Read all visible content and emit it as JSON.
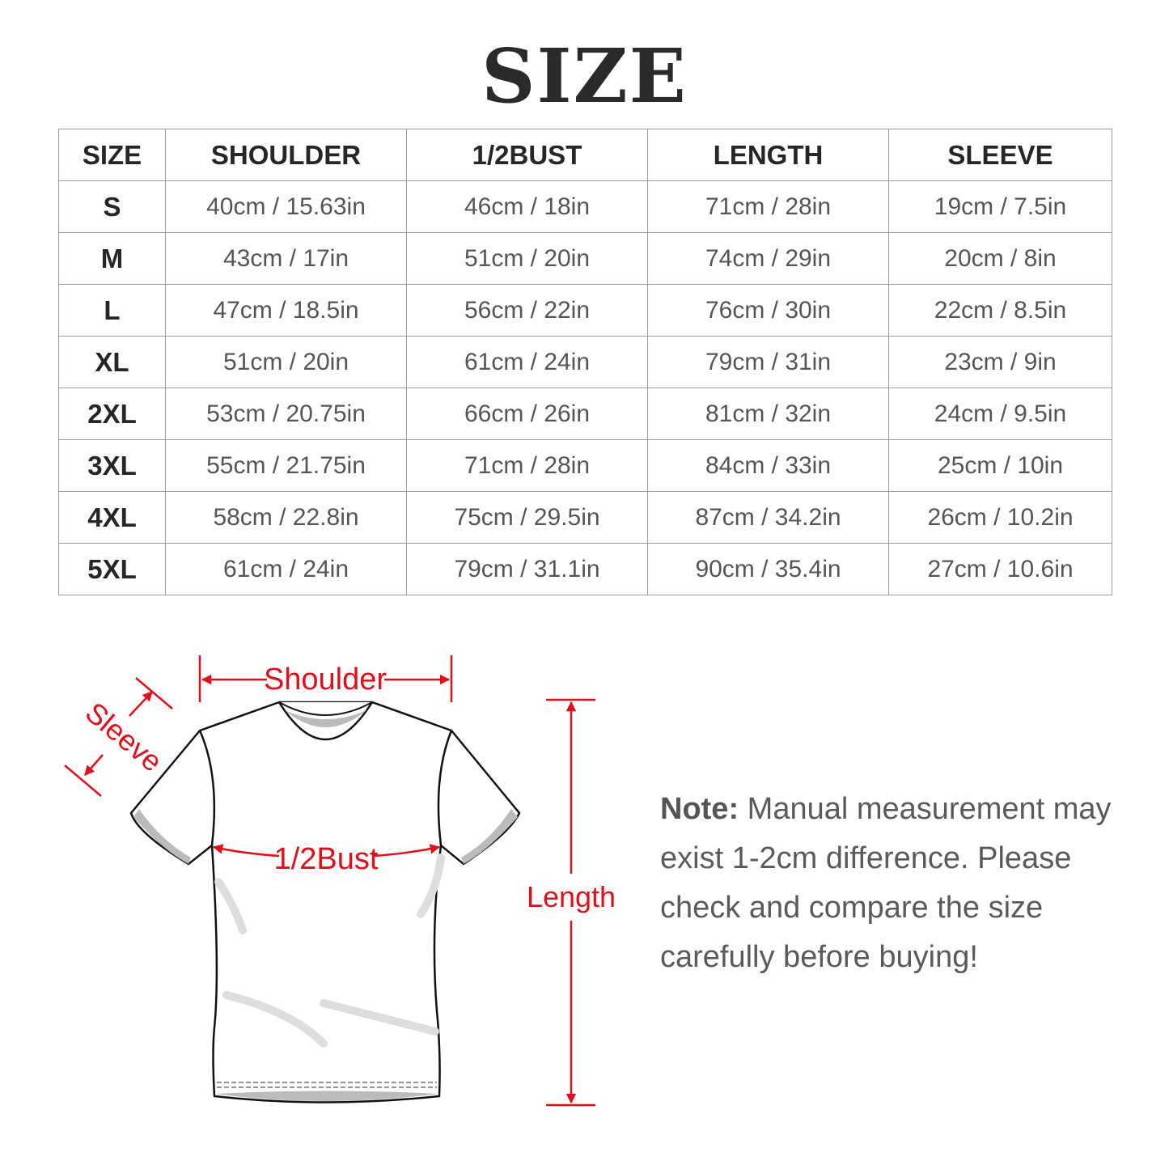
{
  "title": "SIZE",
  "table": {
    "headers": [
      "SIZE",
      "SHOULDER",
      "1/2BUST",
      "LENGTH",
      "SLEEVE"
    ],
    "rows": [
      [
        "S",
        "40cm / 15.63in",
        "46cm / 18in",
        "71cm / 28in",
        "19cm / 7.5in"
      ],
      [
        "M",
        "43cm / 17in",
        "51cm / 20in",
        "74cm / 29in",
        "20cm / 8in"
      ],
      [
        "L",
        "47cm / 18.5in",
        "56cm / 22in",
        "76cm / 30in",
        "22cm / 8.5in"
      ],
      [
        "XL",
        "51cm / 20in",
        "61cm / 24in",
        "79cm / 31in",
        "23cm / 9in"
      ],
      [
        "2XL",
        "53cm / 20.75in",
        "66cm / 26in",
        "81cm / 32in",
        "24cm / 9.5in"
      ],
      [
        "3XL",
        "55cm / 21.75in",
        "71cm / 28in",
        "84cm / 33in",
        "25cm / 10in"
      ],
      [
        "4XL",
        "58cm / 22.8in",
        "75cm / 29.5in",
        "87cm / 34.2in",
        "26cm / 10.2in"
      ],
      [
        "5XL",
        "61cm / 24in",
        "79cm / 31.1in",
        "90cm / 35.4in",
        "27cm / 10.6in"
      ]
    ]
  },
  "diagram": {
    "labels": {
      "shoulder": "Shoulder",
      "sleeve": "Sleeve",
      "bust": "1/2Bust",
      "length": "Length"
    },
    "accent_color": "#e0101a"
  },
  "note": {
    "label": "Note:",
    "text": " Manual measurement may exist 1-2cm difference. Please check and compare the size carefully before buying!"
  }
}
